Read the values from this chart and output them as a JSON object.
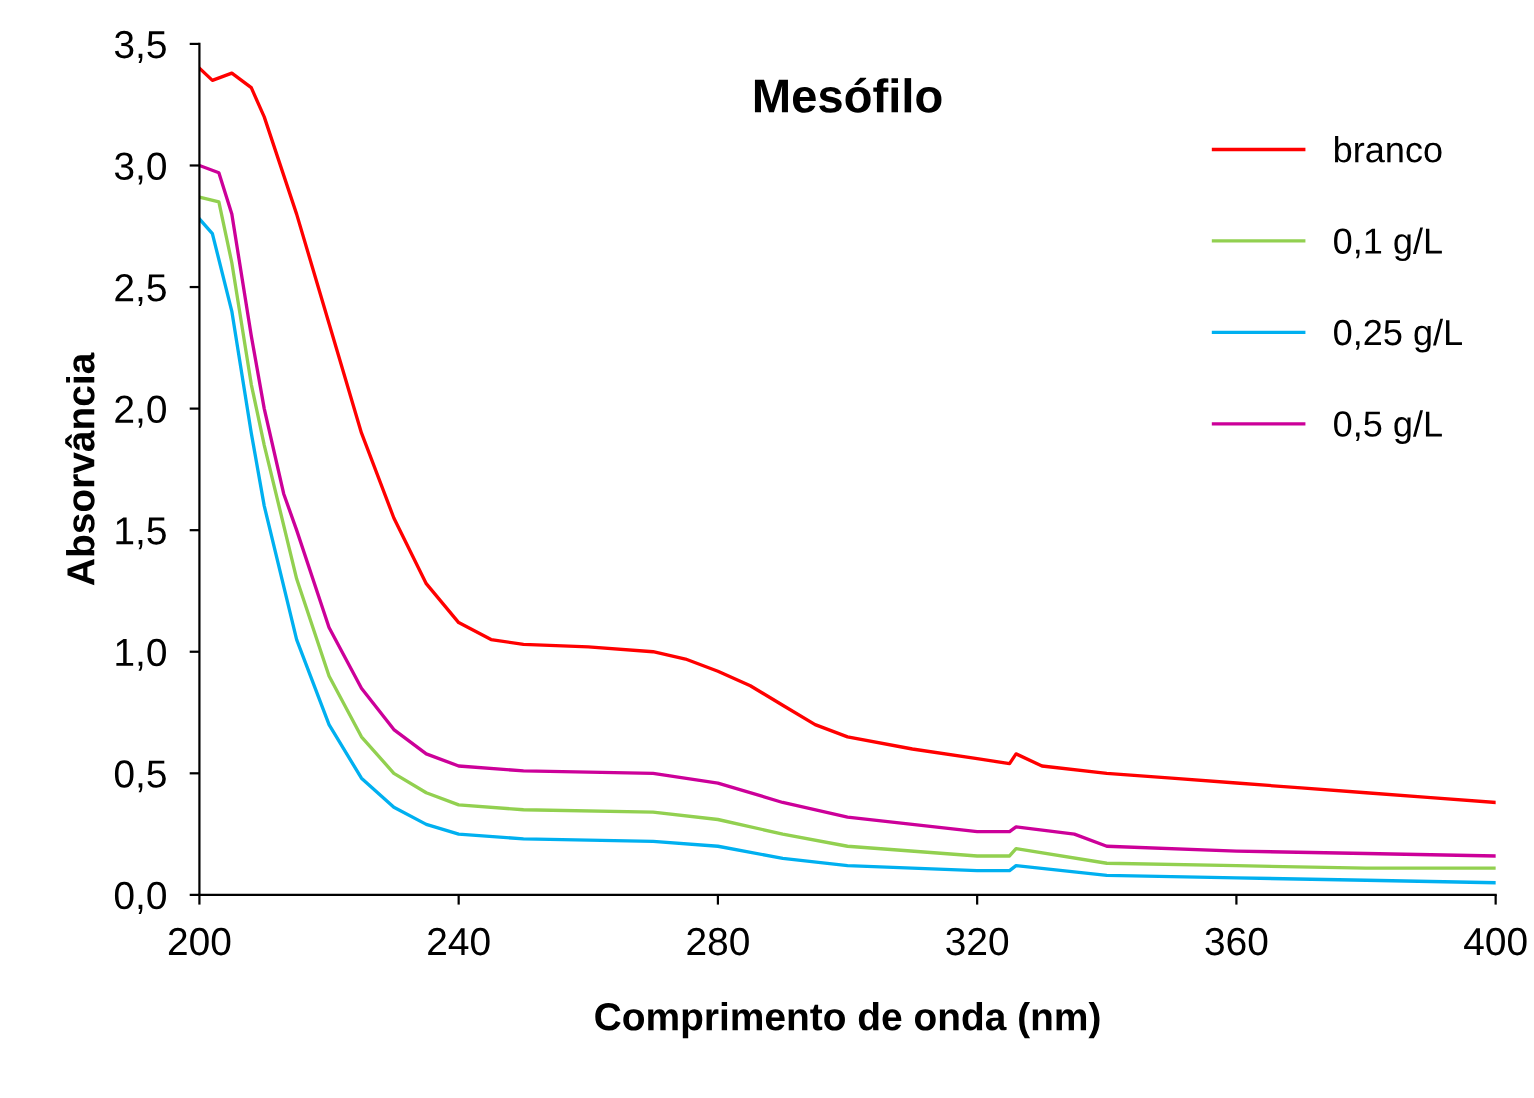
{
  "chart_data": {
    "type": "line",
    "title": "Mesófilo",
    "xlabel": "Comprimento de onda (nm)",
    "ylabel": "Absorvância",
    "xlim": [
      200,
      400
    ],
    "xticks": [
      200,
      240,
      280,
      320,
      360,
      400
    ],
    "ylim": [
      0,
      3.5
    ],
    "yticks": [
      {
        "value": 0,
        "label": "0,0"
      },
      {
        "value": 0.5,
        "label": "0,5"
      },
      {
        "value": 1,
        "label": "1,0"
      },
      {
        "value": 1.5,
        "label": "1,5"
      },
      {
        "value": 2,
        "label": "2,0"
      },
      {
        "value": 2.5,
        "label": "2,5"
      },
      {
        "value": 3,
        "label": "3,0"
      },
      {
        "value": 3.5,
        "label": "3,5"
      }
    ],
    "grid": false,
    "legend": "top right",
    "marker": "none",
    "line_style": "solid",
    "series": [
      {
        "name": "branco",
        "color": "#ff0000",
        "x": [
          200,
          202,
          205,
          208,
          210,
          215,
          220,
          225,
          230,
          235,
          240,
          245,
          250,
          260,
          270,
          275,
          280,
          285,
          290,
          295,
          300,
          310,
          320,
          325,
          326,
          330,
          340,
          350,
          360,
          370,
          380,
          390,
          400
        ],
        "values": [
          3.4,
          3.35,
          3.38,
          3.32,
          3.2,
          2.8,
          2.35,
          1.9,
          1.55,
          1.28,
          1.12,
          1.05,
          1.03,
          1.02,
          1.0,
          0.97,
          0.92,
          0.86,
          0.78,
          0.7,
          0.65,
          0.6,
          0.56,
          0.54,
          0.58,
          0.53,
          0.5,
          0.48,
          0.46,
          0.44,
          0.42,
          0.4,
          0.38
        ]
      },
      {
        "name": "0,1 g/L",
        "color": "#92d050",
        "x": [
          200,
          203,
          205,
          208,
          210,
          215,
          220,
          225,
          230,
          235,
          240,
          250,
          270,
          280,
          290,
          300,
          320,
          325,
          326,
          340,
          360,
          380,
          400
        ],
        "values": [
          2.87,
          2.85,
          2.6,
          2.1,
          1.85,
          1.3,
          0.9,
          0.65,
          0.5,
          0.42,
          0.37,
          0.35,
          0.34,
          0.31,
          0.25,
          0.2,
          0.16,
          0.16,
          0.19,
          0.13,
          0.12,
          0.11,
          0.11
        ]
      },
      {
        "name": "0,25 g/L",
        "color": "#00b0f0",
        "x": [
          200,
          202,
          205,
          208,
          210,
          215,
          220,
          225,
          230,
          235,
          240,
          250,
          270,
          280,
          290,
          300,
          320,
          325,
          326,
          340,
          360,
          380,
          400
        ],
        "values": [
          2.78,
          2.72,
          2.4,
          1.9,
          1.6,
          1.05,
          0.7,
          0.48,
          0.36,
          0.29,
          0.25,
          0.23,
          0.22,
          0.2,
          0.15,
          0.12,
          0.1,
          0.1,
          0.12,
          0.08,
          0.07,
          0.06,
          0.05
        ]
      },
      {
        "name": "0,5 g/L",
        "color": "#cc0099",
        "x": [
          200,
          203,
          205,
          208,
          210,
          213,
          215,
          220,
          225,
          230,
          235,
          240,
          250,
          270,
          280,
          290,
          300,
          310,
          320,
          325,
          326,
          335,
          340,
          360,
          380,
          400
        ],
        "values": [
          3.0,
          2.97,
          2.8,
          2.3,
          2.0,
          1.65,
          1.5,
          1.1,
          0.85,
          0.68,
          0.58,
          0.53,
          0.51,
          0.5,
          0.46,
          0.38,
          0.32,
          0.29,
          0.26,
          0.26,
          0.28,
          0.25,
          0.2,
          0.18,
          0.17,
          0.16
        ]
      }
    ]
  }
}
